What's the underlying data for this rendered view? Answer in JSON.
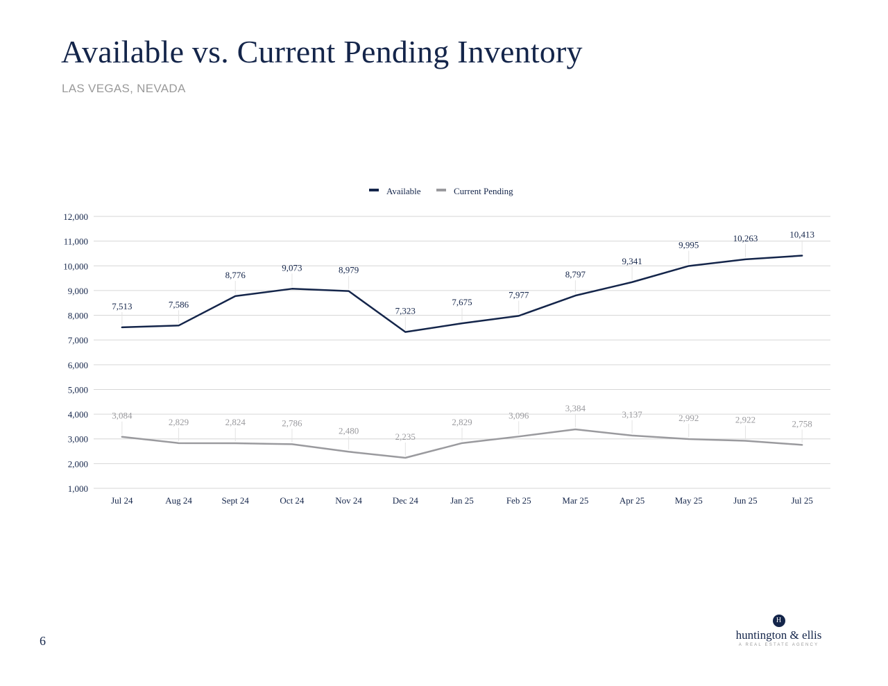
{
  "title": "Available vs. Current Pending Inventory",
  "subtitle": "LAS VEGAS, NEVADA",
  "page_number": "6",
  "logo": {
    "mark": "H",
    "name": "huntington & ellis",
    "tagline": "A REAL ESTATE AGENCY"
  },
  "colors": {
    "available": "#14254a",
    "pending": "#9a9a9e",
    "grid": "#d6d6d6",
    "text": "#14254a"
  },
  "chart_data": {
    "type": "line",
    "categories": [
      "Jul 24",
      "Aug 24",
      "Sept 24",
      "Oct 24",
      "Nov 24",
      "Dec 24",
      "Jan 25",
      "Feb 25",
      "Mar 25",
      "Apr 25",
      "May 25",
      "Jun 25",
      "Jul 25"
    ],
    "series": [
      {
        "name": "Available",
        "values": [
          7513,
          7586,
          8776,
          9073,
          8979,
          7323,
          7675,
          7977,
          8797,
          9341,
          9995,
          10263,
          10413
        ],
        "labels": [
          "7,513",
          "7,586",
          "8,776",
          "9,073",
          "8,979",
          "7,323",
          "7,675",
          "7,977",
          "8,797",
          "9,341",
          "9,995",
          "10,263",
          "10,413"
        ]
      },
      {
        "name": "Current Pending",
        "values": [
          3084,
          2829,
          2824,
          2786,
          2480,
          2235,
          2829,
          3096,
          3384,
          3137,
          2992,
          2922,
          2758
        ],
        "labels": [
          "3,084",
          "2,829",
          "2,824",
          "2,786",
          "2,480",
          "2,235",
          "2,829",
          "3,096",
          "3,384",
          "3,137",
          "2,992",
          "2,922",
          "2,758"
        ]
      }
    ],
    "ylim": [
      1000,
      12000
    ],
    "yticks": [
      1000,
      2000,
      3000,
      4000,
      5000,
      6000,
      7000,
      8000,
      9000,
      10000,
      11000,
      12000
    ],
    "ytick_labels": [
      "1,000",
      "2,000",
      "3,000",
      "4,000",
      "5,000",
      "6,000",
      "7,000",
      "8,000",
      "9,000",
      "10,000",
      "11,000",
      "12,000"
    ],
    "grid": true,
    "legend": "top-center"
  }
}
